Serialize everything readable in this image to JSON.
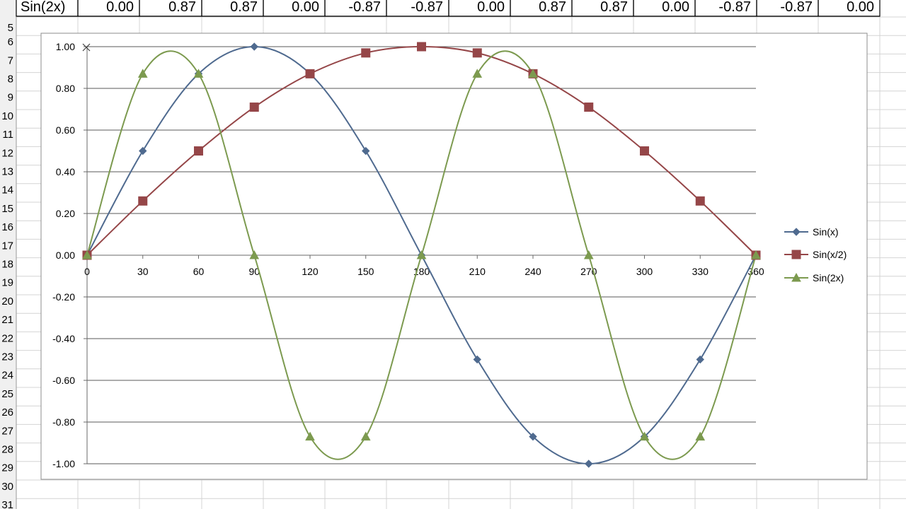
{
  "spreadsheet": {
    "top_row": {
      "label": "Sin(2x)",
      "values": [
        "0.00",
        "0.87",
        "0.87",
        "0.00",
        "-0.87",
        "-0.87",
        "0.00",
        "0.87",
        "0.87",
        "0.00",
        "-0.87",
        "-0.87",
        "0.00"
      ]
    },
    "row_numbers": [
      "5",
      "6",
      "7",
      "8",
      "9",
      "10",
      "11",
      "12",
      "13",
      "14",
      "15",
      "16",
      "17",
      "18",
      "19",
      "20",
      "21",
      "22",
      "23",
      "24",
      "25",
      "26",
      "27",
      "28",
      "29",
      "30",
      "31"
    ]
  },
  "chart_data": {
    "type": "line",
    "title": "",
    "xlabel": "",
    "ylabel": "",
    "x": [
      0,
      30,
      60,
      90,
      120,
      150,
      180,
      210,
      240,
      270,
      300,
      330,
      360
    ],
    "x_tick_labels": [
      "0",
      "30",
      "60",
      "90",
      "120",
      "150",
      "180",
      "210",
      "240",
      "270",
      "300",
      "330",
      "360"
    ],
    "y_tick_labels": [
      "1.00",
      "0.80",
      "0.60",
      "0.40",
      "0.20",
      "0.00",
      "-0.20",
      "-0.40",
      "-0.60",
      "-0.80",
      "-1.00"
    ],
    "y_ticks": [
      1,
      0.8,
      0.6,
      0.4,
      0.2,
      0,
      -0.2,
      -0.4,
      -0.6,
      -0.8,
      -1
    ],
    "xlim": [
      0,
      360
    ],
    "ylim": [
      -1,
      1
    ],
    "grid": "horizontal",
    "smooth": true,
    "legend": "right",
    "series": [
      {
        "name": "Sin(x)",
        "marker": "diamond",
        "color": "#4f6a8f",
        "values": [
          0,
          0.5,
          0.87,
          1,
          0.87,
          0.5,
          0,
          -0.5,
          -0.87,
          -1,
          -0.87,
          -0.5,
          0
        ]
      },
      {
        "name": "Sin(x/2)",
        "marker": "square",
        "color": "#954648",
        "values": [
          0,
          0.26,
          0.5,
          0.71,
          0.87,
          0.97,
          1,
          0.97,
          0.87,
          0.71,
          0.5,
          0.26,
          0
        ]
      },
      {
        "name": "Sin(2x)",
        "marker": "triangle",
        "color": "#7c9a4f",
        "values": [
          0,
          0.87,
          0.87,
          0,
          -0.87,
          -0.87,
          0,
          0.87,
          0.87,
          0,
          -0.87,
          -0.87,
          0
        ]
      }
    ]
  }
}
